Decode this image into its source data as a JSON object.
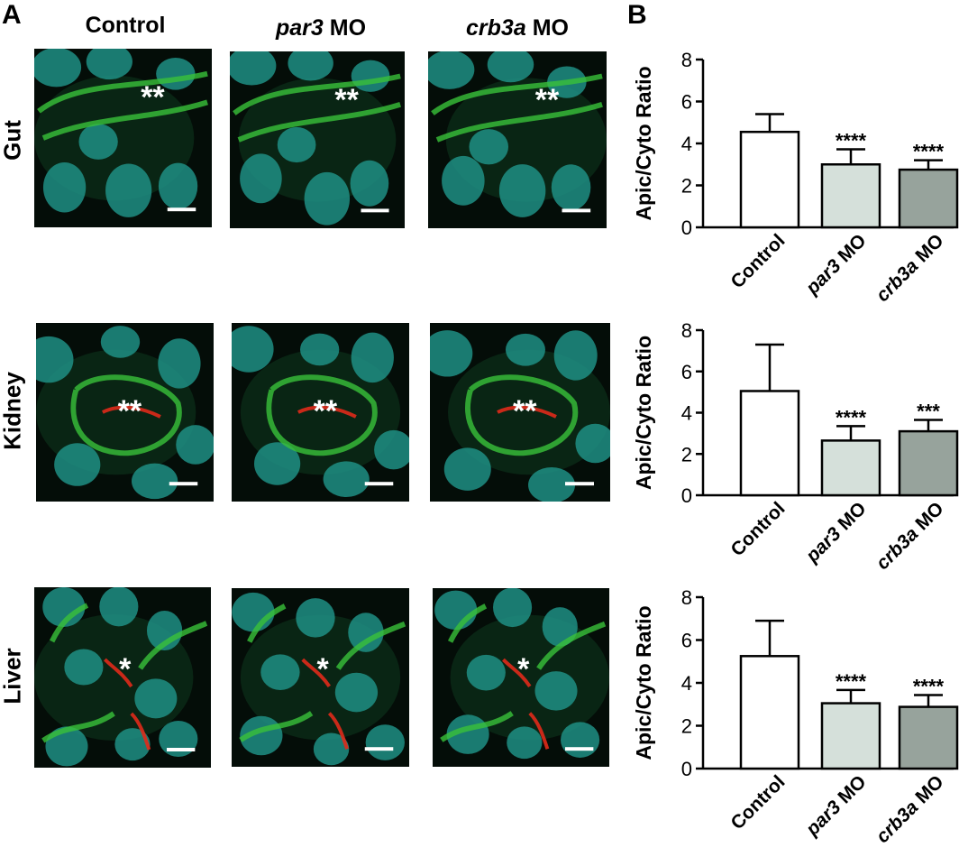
{
  "panels": {
    "a_label": "A",
    "b_label": "B"
  },
  "columns": [
    {
      "italic": "",
      "plain": "Control"
    },
    {
      "italic": "par3",
      "plain": " MO"
    },
    {
      "italic": "crb3a",
      "plain": " MO"
    }
  ],
  "rows": [
    "Gut",
    "Kidney",
    "Liver"
  ],
  "image_markers": [
    [
      "**",
      "**",
      "**"
    ],
    [
      "**",
      "**",
      "**"
    ],
    [
      "*",
      "*",
      "*"
    ]
  ],
  "colors": {
    "nuclei": "#1f8f84",
    "membrane": "#39c23a",
    "apical": "#e02a1a",
    "background": "#040d08",
    "bar_control": "#ffffff",
    "bar_par3": "#d5e0da",
    "bar_crb3a": "#97a39c"
  },
  "chart_data": [
    {
      "type": "bar",
      "title": "",
      "xlabel": "",
      "ylabel": "Apic/Cyto Ratio",
      "ylim": [
        0,
        8
      ],
      "yticks": [
        0,
        2,
        4,
        6,
        8
      ],
      "categories": [
        {
          "italic": "",
          "plain": "Control"
        },
        {
          "italic": "par3",
          "plain": " MO"
        },
        {
          "italic": "crb3a",
          "plain": " MO"
        }
      ],
      "values": [
        4.55,
        3.0,
        2.75
      ],
      "errors": [
        0.85,
        0.72,
        0.45
      ],
      "significance": [
        "",
        "****",
        "****"
      ]
    },
    {
      "type": "bar",
      "title": "",
      "xlabel": "",
      "ylabel": "Apic/Cyto Ratio",
      "ylim": [
        0,
        8
      ],
      "yticks": [
        0,
        2,
        4,
        6,
        8
      ],
      "categories": [
        {
          "italic": "",
          "plain": "Control"
        },
        {
          "italic": "par3",
          "plain": " MO"
        },
        {
          "italic": "crb3a",
          "plain": " MO"
        }
      ],
      "values": [
        5.05,
        2.65,
        3.1
      ],
      "errors": [
        2.25,
        0.7,
        0.55
      ],
      "significance": [
        "",
        "****",
        "***"
      ]
    },
    {
      "type": "bar",
      "title": "",
      "xlabel": "",
      "ylabel": "Apic/Cyto Ratio",
      "ylim": [
        0,
        8
      ],
      "yticks": [
        0,
        2,
        4,
        6,
        8
      ],
      "categories": [
        {
          "italic": "",
          "plain": "Control"
        },
        {
          "italic": "par3",
          "plain": " MO"
        },
        {
          "italic": "crb3a",
          "plain": " MO"
        }
      ],
      "values": [
        5.25,
        3.05,
        2.88
      ],
      "errors": [
        1.65,
        0.62,
        0.55
      ],
      "significance": [
        "",
        "****",
        "****"
      ]
    }
  ]
}
